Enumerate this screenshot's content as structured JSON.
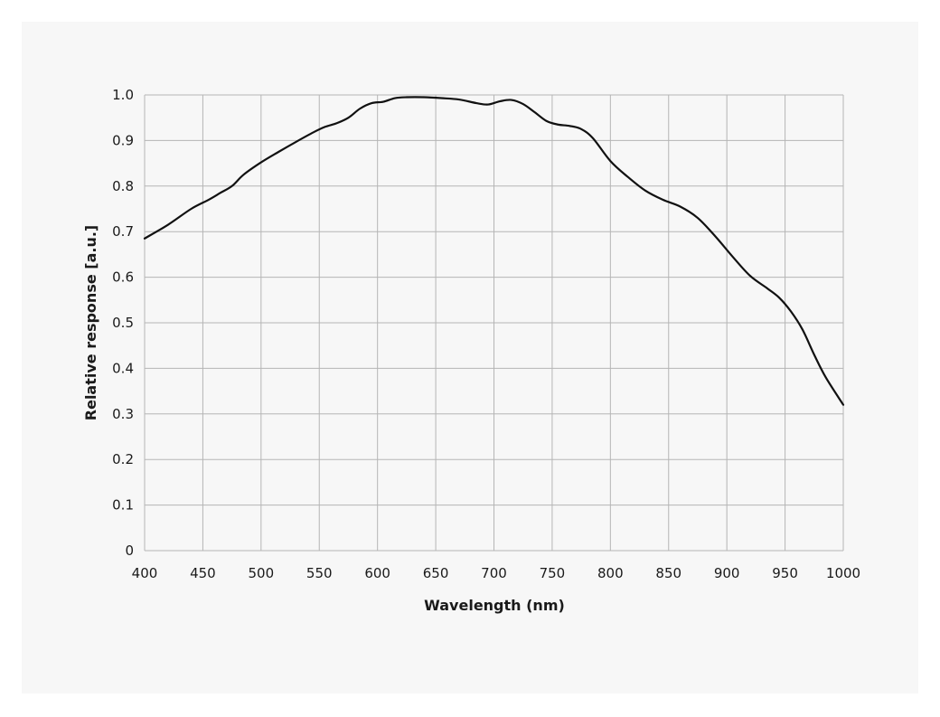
{
  "chart_data": {
    "type": "line",
    "title": "",
    "xlabel": "Wavelength (nm)",
    "ylabel": "Relative response [a.u.]",
    "xlim": [
      400,
      1000
    ],
    "ylim": [
      0,
      1.0
    ],
    "x_ticks": [
      "400",
      "450",
      "500",
      "550",
      "600",
      "650",
      "700",
      "750",
      "800",
      "850",
      "900",
      "950",
      "1000"
    ],
    "y_ticks": [
      "0",
      "0.1",
      "0.2",
      "0.3",
      "0.4",
      "0.5",
      "0.6",
      "0.7",
      "0.8",
      "0.9",
      "1.0"
    ],
    "grid": true,
    "line_color": "#111111",
    "series": [
      {
        "x": [
          400,
          420,
          440,
          455,
          465,
          475,
          485,
          500,
          515,
          530,
          545,
          555,
          565,
          575,
          585,
          595,
          605,
          615,
          625,
          640,
          655,
          670,
          685,
          695,
          705,
          715,
          725,
          735,
          745,
          755,
          765,
          775,
          785,
          800,
          815,
          830,
          845,
          860,
          875,
          890,
          905,
          920,
          935,
          945,
          955,
          965,
          975,
          985,
          1000
        ],
        "y": [
          0.685,
          0.715,
          0.75,
          0.77,
          0.785,
          0.8,
          0.825,
          0.852,
          0.875,
          0.897,
          0.918,
          0.93,
          0.938,
          0.95,
          0.97,
          0.982,
          0.985,
          0.993,
          0.995,
          0.995,
          0.993,
          0.99,
          0.982,
          0.979,
          0.986,
          0.989,
          0.98,
          0.962,
          0.943,
          0.935,
          0.932,
          0.925,
          0.905,
          0.855,
          0.82,
          0.79,
          0.77,
          0.755,
          0.73,
          0.69,
          0.645,
          0.603,
          0.575,
          0.555,
          0.525,
          0.485,
          0.43,
          0.38,
          0.32
        ]
      }
    ]
  }
}
